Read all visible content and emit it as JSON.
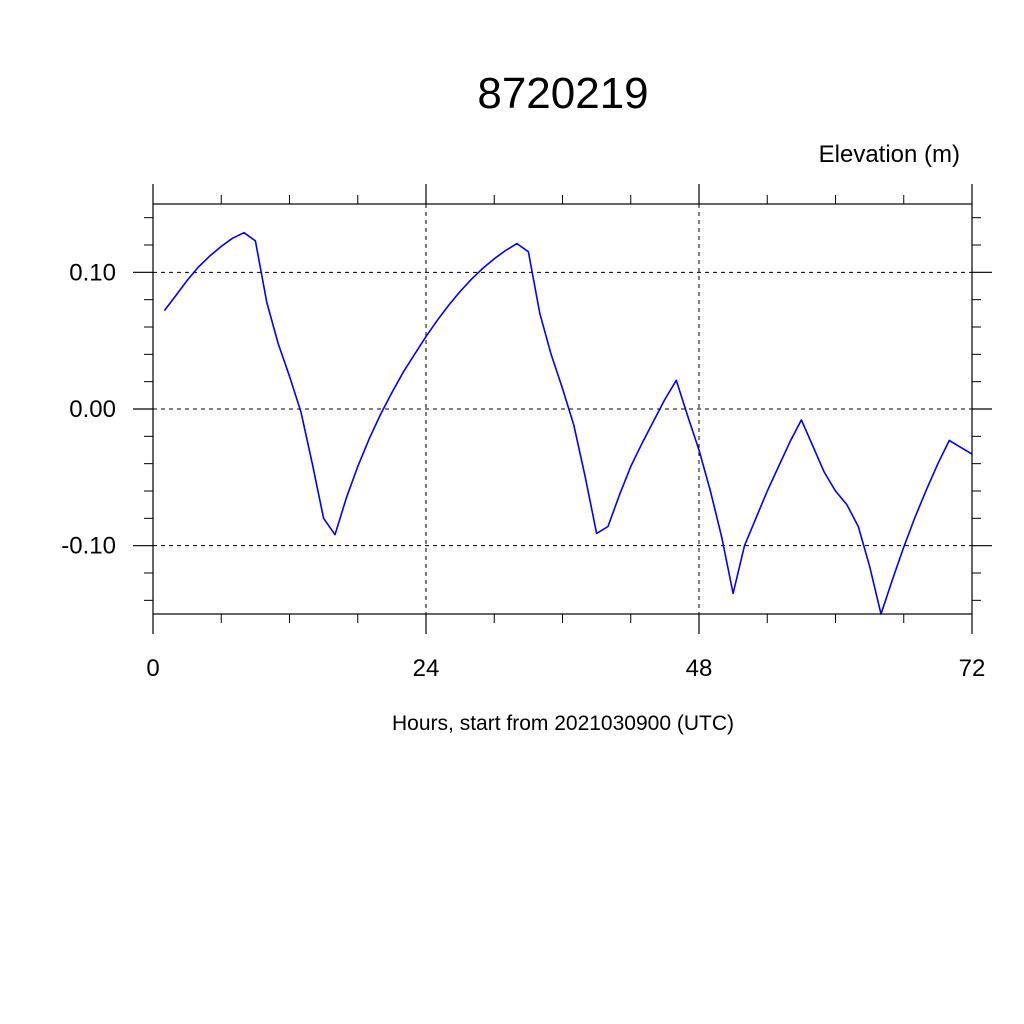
{
  "chart_data": {
    "type": "line",
    "title": "8720219",
    "ylabel": "Elevation (m)",
    "xlabel": "Hours, start from 2021030900 (UTC)",
    "xlim": [
      0,
      72
    ],
    "ylim": [
      -0.15,
      0.15
    ],
    "x_ticks": [
      0,
      24,
      48,
      72
    ],
    "x_tick_labels": [
      "0",
      "24",
      "48",
      "72"
    ],
    "y_ticks": [
      -0.1,
      0.0,
      0.1
    ],
    "y_tick_labels": [
      "-0.10",
      "0.00",
      "0.10"
    ],
    "grid": true,
    "series": [
      {
        "color": "#0000ff",
        "x": [
          1,
          2,
          3,
          4,
          5,
          6,
          7,
          8,
          9,
          10,
          11,
          12,
          13,
          14,
          15,
          16,
          17,
          18,
          19,
          20,
          21,
          22,
          23,
          24,
          25,
          26,
          27,
          28,
          29,
          30,
          31,
          32,
          33,
          34,
          35,
          36,
          37,
          38,
          39,
          40,
          41,
          42,
          43,
          44,
          45,
          46,
          47,
          48,
          49,
          50,
          51,
          52,
          53,
          54,
          55,
          56,
          57,
          58,
          59,
          60,
          61,
          62,
          63,
          64,
          65,
          66,
          67,
          68,
          69,
          70,
          71,
          72
        ],
        "y": [
          0.072,
          0.083,
          0.094,
          0.104,
          0.112,
          0.119,
          0.125,
          0.129,
          0.123,
          0.078,
          0.048,
          0.024,
          -0.002,
          -0.04,
          -0.08,
          -0.092,
          -0.065,
          -0.042,
          -0.022,
          -0.004,
          0.012,
          0.027,
          0.04,
          0.053,
          0.065,
          0.076,
          0.086,
          0.095,
          0.103,
          0.11,
          0.116,
          0.121,
          0.115,
          0.07,
          0.04,
          0.015,
          -0.012,
          -0.05,
          -0.091,
          -0.086,
          -0.063,
          -0.042,
          -0.025,
          -0.009,
          0.007,
          0.021,
          -0.005,
          -0.03,
          -0.06,
          -0.094,
          -0.135,
          -0.1,
          -0.08,
          -0.06,
          -0.042,
          -0.024,
          -0.008,
          -0.027,
          -0.046,
          -0.06,
          -0.07,
          -0.086,
          -0.115,
          -0.15,
          -0.125,
          -0.101,
          -0.079,
          -0.059,
          -0.04,
          -0.023,
          -0.028,
          -0.033
        ]
      }
    ]
  }
}
